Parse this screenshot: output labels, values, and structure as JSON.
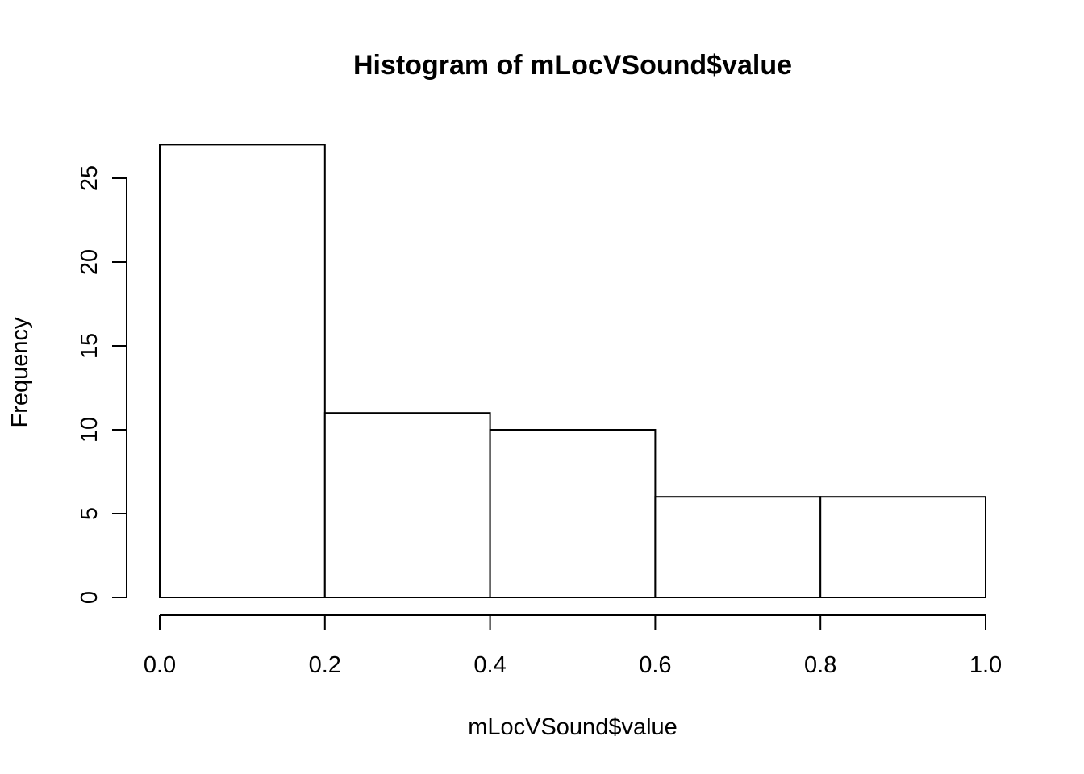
{
  "chart_data": {
    "type": "bar",
    "title": "Histogram of mLocVSound$value",
    "xlabel": "mLocVSound$value",
    "ylabel": "Frequency",
    "bins": [
      {
        "from": 0.0,
        "to": 0.2,
        "count": 27
      },
      {
        "from": 0.2,
        "to": 0.4,
        "count": 11
      },
      {
        "from": 0.4,
        "to": 0.6,
        "count": 10
      },
      {
        "from": 0.6,
        "to": 0.8,
        "count": 6
      },
      {
        "from": 0.8,
        "to": 1.0,
        "count": 6
      }
    ],
    "xlim": [
      0.0,
      1.0
    ],
    "ylim": [
      0,
      27
    ],
    "xticks": [
      0.0,
      0.2,
      0.4,
      0.6,
      0.8,
      1.0
    ],
    "xtick_labels": [
      "0.0",
      "0.2",
      "0.4",
      "0.6",
      "0.8",
      "1.0"
    ],
    "yticks": [
      0,
      5,
      10,
      15,
      20,
      25
    ],
    "ytick_labels": [
      "0",
      "5",
      "10",
      "15",
      "20",
      "25"
    ],
    "grid": false,
    "bar_fill": "#ffffff",
    "bar_stroke": "#000000"
  }
}
